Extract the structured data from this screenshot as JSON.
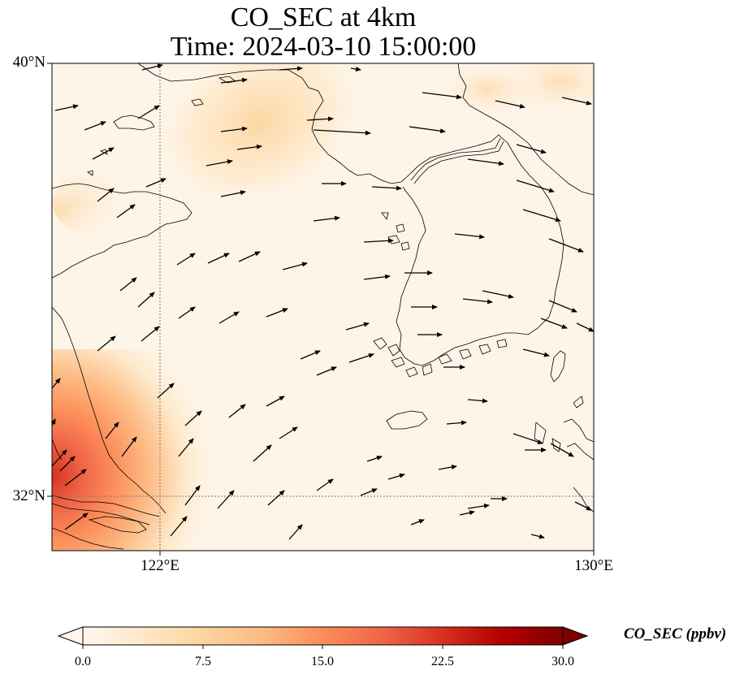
{
  "title": {
    "line1": "CO_SEC at 4km",
    "line2": "Time: 2024-03-10 15:00:00"
  },
  "axes": {
    "lat_labels": [
      "40°N",
      "32°N"
    ],
    "lon_labels": [
      "122°E",
      "130°E"
    ],
    "lon_range": [
      120,
      130
    ],
    "lat_range": [
      31,
      40
    ]
  },
  "colorbar": {
    "label": "CO_SEC (ppbv)",
    "ticks": [
      "0.0",
      "7.5",
      "15.0",
      "22.5",
      "30.0"
    ],
    "vmin": 0,
    "vmax": 30,
    "extend": "both",
    "colormap": [
      "#fff7ec",
      "#fee8c8",
      "#fdd49e",
      "#fdbb84",
      "#fc8d59",
      "#ef6548",
      "#d7301f",
      "#b30000",
      "#7f0000"
    ]
  },
  "legend_colors": {
    "coast": "#000000",
    "gridline": "#777777",
    "wind_arrow": "#000000"
  }
}
